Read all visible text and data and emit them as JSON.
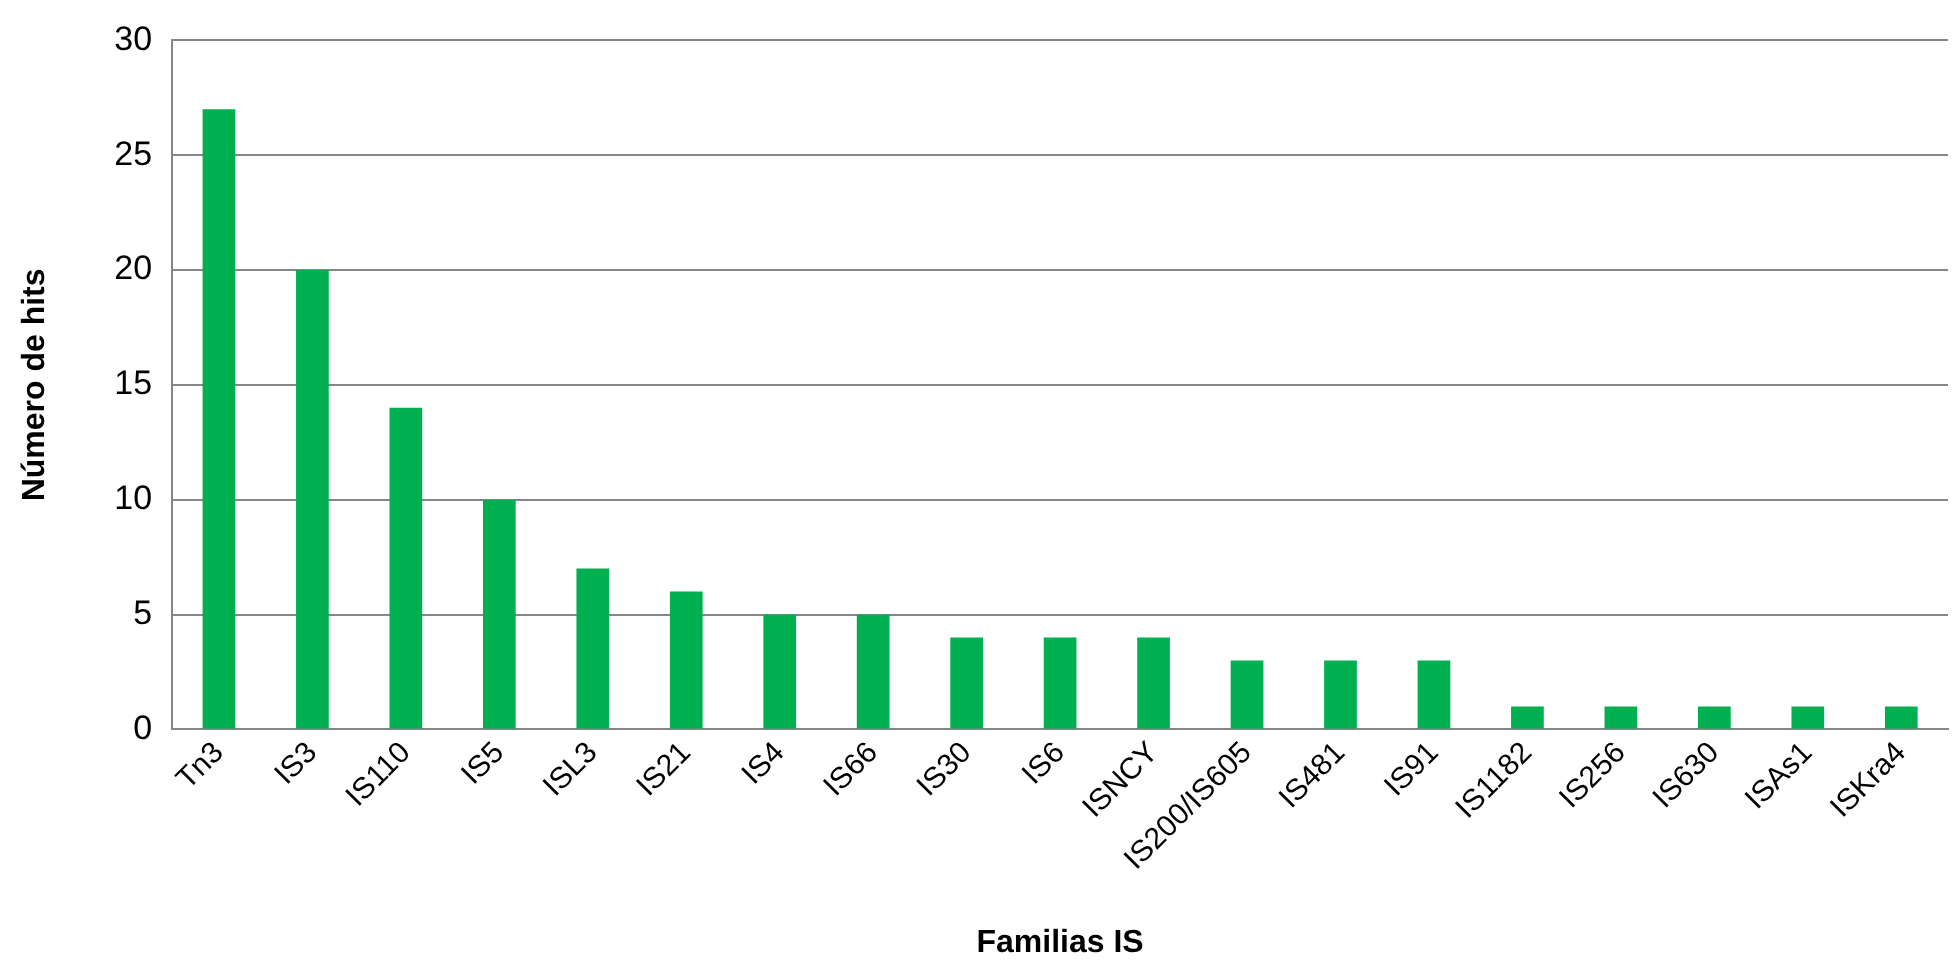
{
  "chart_data": {
    "type": "bar",
    "xlabel": "Familias IS",
    "ylabel": "Número de hits",
    "categories": [
      "Tn3",
      "IS3",
      "IS110",
      "IS5",
      "ISL3",
      "IS21",
      "IS4",
      "IS66",
      "IS30",
      "IS6",
      "ISNCY",
      "IS200/IS605",
      "IS481",
      "IS91",
      "IS1182",
      "IS256",
      "IS630",
      "ISAs1",
      "ISKra4"
    ],
    "values": [
      27,
      20,
      14,
      10,
      7,
      6,
      5,
      5,
      4,
      4,
      4,
      3,
      3,
      3,
      1,
      1,
      1,
      1,
      1
    ],
    "color": "#00b050",
    "ylim": [
      0,
      30
    ],
    "yticks": [
      0,
      5,
      10,
      15,
      20,
      25,
      30
    ],
    "grid": "y",
    "legend": false
  }
}
